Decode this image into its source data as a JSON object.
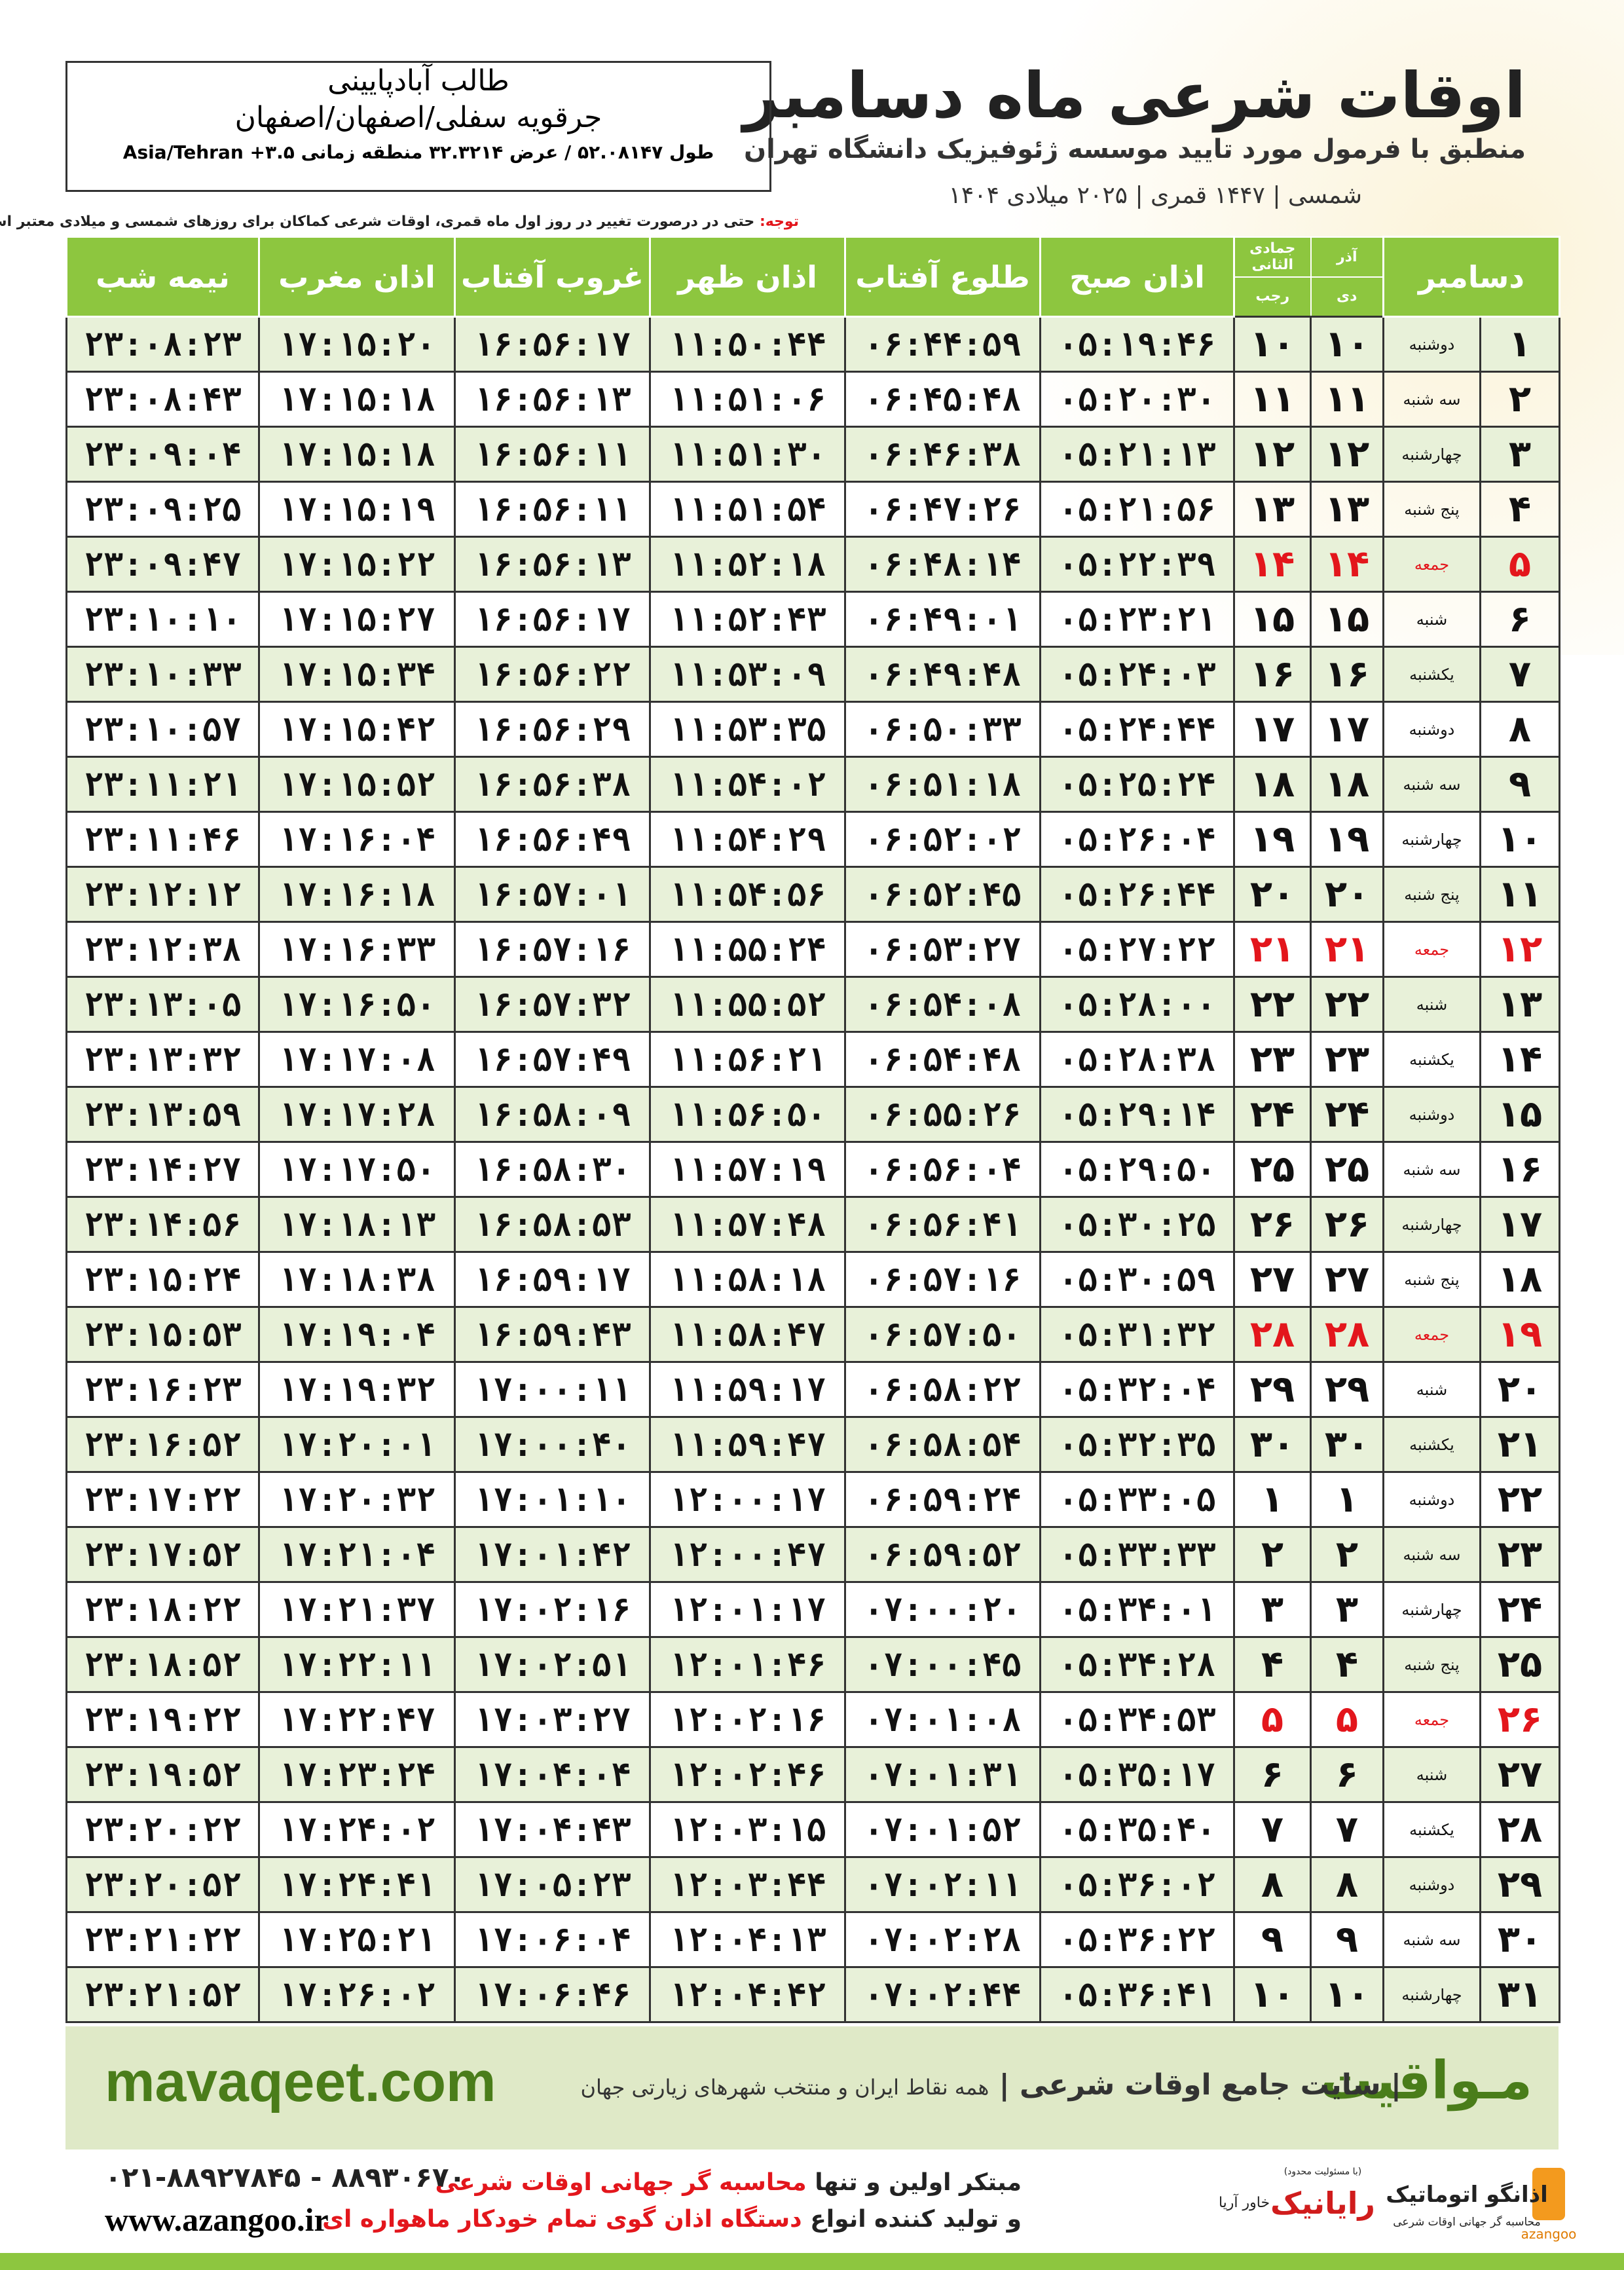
{
  "header": {
    "title": "اوقات شرعی ماه دسامبر",
    "subtitle": "منطبق با فرمول مورد تایید موسسه ژئوفیزیک دانشگاه تهران",
    "years": "۱۴۰۴ شمسی | ۱۴۴۷ قمری | ۲۰۲۵ میلادی"
  },
  "location": {
    "name": "طالب آبادپایینی",
    "region": "جرقویه سفلی/اصفهان/اصفهان",
    "coords": "طول ۵۲.۰۸۱۴۷ / عرض ۳۲.۳۲۱۴ منطقه زمانی ۳.۵+ Asia/Tehran"
  },
  "note": {
    "label": "توجه:",
    "text": "حتی در درصورت تغییر در روز اول ماه قمری، اوقات شرعی کماکان برای روزهای شمسی و میلادی معتبر است."
  },
  "table": {
    "columns": [
      "دسامبر",
      "آذر",
      "جمادی الثانی",
      "دی",
      "رجب",
      "اذان صبح",
      "طلوع آفتاب",
      "اذان ظهر",
      "غروب آفتاب",
      "اذان مغرب",
      "نیمه شب"
    ],
    "holiday_color": "#e3161c",
    "holiday_rows": [
      4,
      11,
      18,
      25
    ],
    "rows": [
      [
        "۱",
        "دوشنبه",
        "۱۰",
        "۱۰",
        "۰۵:۱۹:۴۶",
        "۰۶:۴۴:۵۹",
        "۱۱:۵۰:۴۴",
        "۱۶:۵۶:۱۷",
        "۱۷:۱۵:۲۰",
        "۲۳:۰۸:۲۳"
      ],
      [
        "۲",
        "سه شنبه",
        "۱۱",
        "۱۱",
        "۰۵:۲۰:۳۰",
        "۰۶:۴۵:۴۸",
        "۱۱:۵۱:۰۶",
        "۱۶:۵۶:۱۳",
        "۱۷:۱۵:۱۸",
        "۲۳:۰۸:۴۳"
      ],
      [
        "۳",
        "چهارشنبه",
        "۱۲",
        "۱۲",
        "۰۵:۲۱:۱۳",
        "۰۶:۴۶:۳۸",
        "۱۱:۵۱:۳۰",
        "۱۶:۵۶:۱۱",
        "۱۷:۱۵:۱۸",
        "۲۳:۰۹:۰۴"
      ],
      [
        "۴",
        "پنج شنبه",
        "۱۳",
        "۱۳",
        "۰۵:۲۱:۵۶",
        "۰۶:۴۷:۲۶",
        "۱۱:۵۱:۵۴",
        "۱۶:۵۶:۱۱",
        "۱۷:۱۵:۱۹",
        "۲۳:۰۹:۲۵"
      ],
      [
        "۵",
        "جمعه",
        "۱۴",
        "۱۴",
        "۰۵:۲۲:۳۹",
        "۰۶:۴۸:۱۴",
        "۱۱:۵۲:۱۸",
        "۱۶:۵۶:۱۳",
        "۱۷:۱۵:۲۲",
        "۲۳:۰۹:۴۷"
      ],
      [
        "۶",
        "شنبه",
        "۱۵",
        "۱۵",
        "۰۵:۲۳:۲۱",
        "۰۶:۴۹:۰۱",
        "۱۱:۵۲:۴۳",
        "۱۶:۵۶:۱۷",
        "۱۷:۱۵:۲۷",
        "۲۳:۱۰:۱۰"
      ],
      [
        "۷",
        "یکشنبه",
        "۱۶",
        "۱۶",
        "۰۵:۲۴:۰۳",
        "۰۶:۴۹:۴۸",
        "۱۱:۵۳:۰۹",
        "۱۶:۵۶:۲۲",
        "۱۷:۱۵:۳۴",
        "۲۳:۱۰:۳۳"
      ],
      [
        "۸",
        "دوشنبه",
        "۱۷",
        "۱۷",
        "۰۵:۲۴:۴۴",
        "۰۶:۵۰:۳۳",
        "۱۱:۵۳:۳۵",
        "۱۶:۵۶:۲۹",
        "۱۷:۱۵:۴۲",
        "۲۳:۱۰:۵۷"
      ],
      [
        "۹",
        "سه شنبه",
        "۱۸",
        "۱۸",
        "۰۵:۲۵:۲۴",
        "۰۶:۵۱:۱۸",
        "۱۱:۵۴:۰۲",
        "۱۶:۵۶:۳۸",
        "۱۷:۱۵:۵۲",
        "۲۳:۱۱:۲۱"
      ],
      [
        "۱۰",
        "چهارشنبه",
        "۱۹",
        "۱۹",
        "۰۵:۲۶:۰۴",
        "۰۶:۵۲:۰۲",
        "۱۱:۵۴:۲۹",
        "۱۶:۵۶:۴۹",
        "۱۷:۱۶:۰۴",
        "۲۳:۱۱:۴۶"
      ],
      [
        "۱۱",
        "پنج شنبه",
        "۲۰",
        "۲۰",
        "۰۵:۲۶:۴۴",
        "۰۶:۵۲:۴۵",
        "۱۱:۵۴:۵۶",
        "۱۶:۵۷:۰۱",
        "۱۷:۱۶:۱۸",
        "۲۳:۱۲:۱۲"
      ],
      [
        "۱۲",
        "جمعه",
        "۲۱",
        "۲۱",
        "۰۵:۲۷:۲۲",
        "۰۶:۵۳:۲۷",
        "۱۱:۵۵:۲۴",
        "۱۶:۵۷:۱۶",
        "۱۷:۱۶:۳۳",
        "۲۳:۱۲:۳۸"
      ],
      [
        "۱۳",
        "شنبه",
        "۲۲",
        "۲۲",
        "۰۵:۲۸:۰۰",
        "۰۶:۵۴:۰۸",
        "۱۱:۵۵:۵۲",
        "۱۶:۵۷:۳۲",
        "۱۷:۱۶:۵۰",
        "۲۳:۱۳:۰۵"
      ],
      [
        "۱۴",
        "یکشنبه",
        "۲۳",
        "۲۳",
        "۰۵:۲۸:۳۸",
        "۰۶:۵۴:۴۸",
        "۱۱:۵۶:۲۱",
        "۱۶:۵۷:۴۹",
        "۱۷:۱۷:۰۸",
        "۲۳:۱۳:۳۲"
      ],
      [
        "۱۵",
        "دوشنبه",
        "۲۴",
        "۲۴",
        "۰۵:۲۹:۱۴",
        "۰۶:۵۵:۲۶",
        "۱۱:۵۶:۵۰",
        "۱۶:۵۸:۰۹",
        "۱۷:۱۷:۲۸",
        "۲۳:۱۳:۵۹"
      ],
      [
        "۱۶",
        "سه شنبه",
        "۲۵",
        "۲۵",
        "۰۵:۲۹:۵۰",
        "۰۶:۵۶:۰۴",
        "۱۱:۵۷:۱۹",
        "۱۶:۵۸:۳۰",
        "۱۷:۱۷:۵۰",
        "۲۳:۱۴:۲۷"
      ],
      [
        "۱۷",
        "چهارشنبه",
        "۲۶",
        "۲۶",
        "۰۵:۳۰:۲۵",
        "۰۶:۵۶:۴۱",
        "۱۱:۵۷:۴۸",
        "۱۶:۵۸:۵۳",
        "۱۷:۱۸:۱۳",
        "۲۳:۱۴:۵۶"
      ],
      [
        "۱۸",
        "پنج شنبه",
        "۲۷",
        "۲۷",
        "۰۵:۳۰:۵۹",
        "۰۶:۵۷:۱۶",
        "۱۱:۵۸:۱۸",
        "۱۶:۵۹:۱۷",
        "۱۷:۱۸:۳۸",
        "۲۳:۱۵:۲۴"
      ],
      [
        "۱۹",
        "جمعه",
        "۲۸",
        "۲۸",
        "۰۵:۳۱:۳۲",
        "۰۶:۵۷:۵۰",
        "۱۱:۵۸:۴۷",
        "۱۶:۵۹:۴۳",
        "۱۷:۱۹:۰۴",
        "۲۳:۱۵:۵۳"
      ],
      [
        "۲۰",
        "شنبه",
        "۲۹",
        "۲۹",
        "۰۵:۳۲:۰۴",
        "۰۶:۵۸:۲۲",
        "۱۱:۵۹:۱۷",
        "۱۷:۰۰:۱۱",
        "۱۷:۱۹:۳۲",
        "۲۳:۱۶:۲۳"
      ],
      [
        "۲۱",
        "یکشنبه",
        "۳۰",
        "۳۰",
        "۰۵:۳۲:۳۵",
        "۰۶:۵۸:۵۴",
        "۱۱:۵۹:۴۷",
        "۱۷:۰۰:۴۰",
        "۱۷:۲۰:۰۱",
        "۲۳:۱۶:۵۲"
      ],
      [
        "۲۲",
        "دوشنبه",
        "۱",
        "۱",
        "۰۵:۳۳:۰۵",
        "۰۶:۵۹:۲۴",
        "۱۲:۰۰:۱۷",
        "۱۷:۰۱:۱۰",
        "۱۷:۲۰:۳۲",
        "۲۳:۱۷:۲۲"
      ],
      [
        "۲۳",
        "سه شنبه",
        "۲",
        "۲",
        "۰۵:۳۳:۳۳",
        "۰۶:۵۹:۵۲",
        "۱۲:۰۰:۴۷",
        "۱۷:۰۱:۴۲",
        "۱۷:۲۱:۰۴",
        "۲۳:۱۷:۵۲"
      ],
      [
        "۲۴",
        "چهارشنبه",
        "۳",
        "۳",
        "۰۵:۳۴:۰۱",
        "۰۷:۰۰:۲۰",
        "۱۲:۰۱:۱۷",
        "۱۷:۰۲:۱۶",
        "۱۷:۲۱:۳۷",
        "۲۳:۱۸:۲۲"
      ],
      [
        "۲۵",
        "پنج شنبه",
        "۴",
        "۴",
        "۰۵:۳۴:۲۸",
        "۰۷:۰۰:۴۵",
        "۱۲:۰۱:۴۶",
        "۱۷:۰۲:۵۱",
        "۱۷:۲۲:۱۱",
        "۲۳:۱۸:۵۲"
      ],
      [
        "۲۶",
        "جمعه",
        "۵",
        "۵",
        "۰۵:۳۴:۵۳",
        "۰۷:۰۱:۰۸",
        "۱۲:۰۲:۱۶",
        "۱۷:۰۳:۲۷",
        "۱۷:۲۲:۴۷",
        "۲۳:۱۹:۲۲"
      ],
      [
        "۲۷",
        "شنبه",
        "۶",
        "۶",
        "۰۵:۳۵:۱۷",
        "۰۷:۰۱:۳۱",
        "۱۲:۰۲:۴۶",
        "۱۷:۰۴:۰۴",
        "۱۷:۲۳:۲۴",
        "۲۳:۱۹:۵۲"
      ],
      [
        "۲۸",
        "یکشنبه",
        "۷",
        "۷",
        "۰۵:۳۵:۴۰",
        "۰۷:۰۱:۵۲",
        "۱۲:۰۳:۱۵",
        "۱۷:۰۴:۴۳",
        "۱۷:۲۴:۰۲",
        "۲۳:۲۰:۲۲"
      ],
      [
        "۲۹",
        "دوشنبه",
        "۸",
        "۸",
        "۰۵:۳۶:۰۲",
        "۰۷:۰۲:۱۱",
        "۱۲:۰۳:۴۴",
        "۱۷:۰۵:۲۳",
        "۱۷:۲۴:۴۱",
        "۲۳:۲۰:۵۲"
      ],
      [
        "۳۰",
        "سه شنبه",
        "۹",
        "۹",
        "۰۵:۳۶:۲۲",
        "۰۷:۰۲:۲۸",
        "۱۲:۰۴:۱۳",
        "۱۷:۰۶:۰۴",
        "۱۷:۲۵:۲۱",
        "۲۳:۲۱:۲۲"
      ],
      [
        "۳۱",
        "چهارشنبه",
        "۱۰",
        "۱۰",
        "۰۵:۳۶:۴۱",
        "۰۷:۰۲:۴۴",
        "۱۲:۰۴:۴۲",
        "۱۷:۰۶:۴۶",
        "۱۷:۲۶:۰۲",
        "۲۳:۲۱:۵۲"
      ]
    ]
  },
  "footer": {
    "brand": "مـواقیت",
    "tagline": "سایت جامع اوقات شرعی",
    "subtitle": "همه نقاط ایران و منتخب شهرهای زیارتی جهان",
    "site": "mavaqeet.com"
  },
  "contact": {
    "phone": "۰۲۱-۸۸۹۲۷۸۴۵ - ۸۸۹۳۰۶۷۰",
    "website": "www.azangoo.ir",
    "line1": "مبتکر اولین و تنها",
    "line1_red": "محاسبه گر جهانی اوقات شرعی",
    "line2": "و تولید کننده انواع",
    "line2_red": "دستگاه اذان گوی تمام خودکار ماهواره ای"
  },
  "logos": {
    "rayanik": "رایانیک",
    "rayanik_note": "(با مسئولیت محدود)",
    "khavar": "خاور آریا",
    "azangoo_fa": "اذانگو اتوماتیک",
    "azangoo_sub": "محاسبه گر جهانی اوقات شرعی",
    "azangoo_en": "azangoo"
  }
}
